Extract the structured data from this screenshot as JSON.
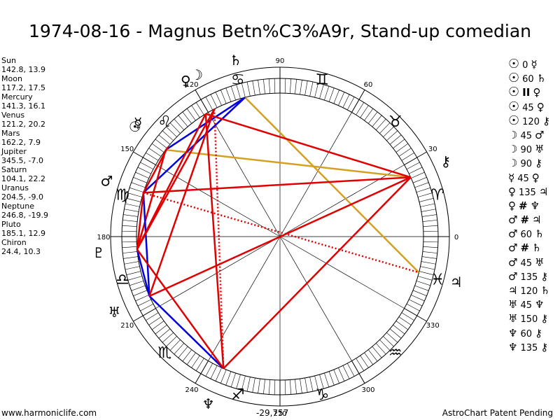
{
  "title": "1974-08-16 - Magnus Betn%C3%A9r, Stand-up comedian",
  "planets": [
    {
      "name": "Sun",
      "coords": "142.8, 13.9",
      "glyph": "☉",
      "lon": 142.8
    },
    {
      "name": "Moon",
      "coords": "117.2, 17.5",
      "glyph": "☽",
      "lon": 117.2
    },
    {
      "name": "Mercury",
      "coords": "141.3, 16.1",
      "glyph": "☿",
      "lon": 141.3
    },
    {
      "name": "Venus",
      "coords": "121.2, 20.2",
      "glyph": "♀",
      "lon": 121.2
    },
    {
      "name": "Mars",
      "coords": "162.2, 7.9",
      "glyph": "♂",
      "lon": 162.2
    },
    {
      "name": "Jupiter",
      "coords": "345.5, -7.0",
      "glyph": "♃",
      "lon": 345.5
    },
    {
      "name": "Saturn",
      "coords": "104.1, 22.2",
      "glyph": "♄",
      "lon": 104.1
    },
    {
      "name": "Uranus",
      "coords": "204.5, -9.0",
      "glyph": "♅",
      "lon": 204.5
    },
    {
      "name": "Neptune",
      "coords": "246.8, -19.9",
      "glyph": "♆",
      "lon": 246.8
    },
    {
      "name": "Pluto",
      "coords": "185.1, 12.9",
      "glyph": "♇",
      "lon": 185.1
    },
    {
      "name": "Chiron",
      "coords": "24.4, 10.3",
      "glyph": "⚷",
      "lon": 24.4
    }
  ],
  "aspects": [
    {
      "p1": "☉",
      "asp": "0",
      "p2": "☿"
    },
    {
      "p1": "☉",
      "asp": "60",
      "p2": "♄"
    },
    {
      "p1": "☉",
      "asp": "II",
      "p2": "♀"
    },
    {
      "p1": "☉",
      "asp": "45",
      "p2": "♀"
    },
    {
      "p1": "☉",
      "asp": "120",
      "p2": "⚷"
    },
    {
      "p1": "☽",
      "asp": "45",
      "p2": "♂"
    },
    {
      "p1": "☽",
      "asp": "90",
      "p2": "♅"
    },
    {
      "p1": "☽",
      "asp": "90",
      "p2": "⚷"
    },
    {
      "p1": "☿",
      "asp": "45",
      "p2": "♀"
    },
    {
      "p1": "♀",
      "asp": "135",
      "p2": "♃"
    },
    {
      "p1": "♀",
      "asp": "#",
      "p2": "♆"
    },
    {
      "p1": "♂",
      "asp": "#",
      "p2": "♃"
    },
    {
      "p1": "♂",
      "asp": "60",
      "p2": "♄"
    },
    {
      "p1": "♂",
      "asp": "#",
      "p2": "♄"
    },
    {
      "p1": "♂",
      "asp": "45",
      "p2": "♅"
    },
    {
      "p1": "♂",
      "asp": "135",
      "p2": "⚷"
    },
    {
      "p1": "♃",
      "asp": "120",
      "p2": "♄"
    },
    {
      "p1": "♅",
      "asp": "45",
      "p2": "♆"
    },
    {
      "p1": "♅",
      "asp": "150",
      "p2": "⚷"
    },
    {
      "p1": "♆",
      "asp": "60",
      "p2": "⚷"
    },
    {
      "p1": "♆",
      "asp": "135",
      "p2": "⚷"
    }
  ],
  "wheel": {
    "degree_labels": [
      "0",
      "30",
      "60",
      "90",
      "120",
      "150",
      "180",
      "210",
      "240",
      "270",
      "300",
      "330"
    ],
    "signs": [
      "♈",
      "♉",
      "♊",
      "♋",
      "♌",
      "♍",
      "♎",
      "♏",
      "♐",
      "♑",
      "♒",
      "♓"
    ],
    "colors": {
      "conjunction_hard": "#e00000",
      "soft": "#0000e0",
      "minor": "#d4a020",
      "ring": "#000000"
    },
    "aspect_lines": [
      {
        "a": 142.8,
        "b": 104.1,
        "color": "#0000e0",
        "style": "solid"
      },
      {
        "a": 142.8,
        "b": 24.4,
        "color": "#d4a020",
        "style": "solid"
      },
      {
        "a": 104.1,
        "b": 345.5,
        "color": "#d4a020",
        "style": "solid"
      },
      {
        "a": 162.2,
        "b": 104.1,
        "color": "#0000e0",
        "style": "solid"
      },
      {
        "a": 142.8,
        "b": 185.1,
        "color": "#e00000",
        "style": "solid"
      },
      {
        "a": 185.1,
        "b": 204.5,
        "color": "#0000e0",
        "style": "solid"
      },
      {
        "a": 204.5,
        "b": 246.8,
        "color": "#0000e0",
        "style": "solid"
      },
      {
        "a": 162.2,
        "b": 204.5,
        "color": "#0000e0",
        "style": "solid"
      },
      {
        "a": 121.2,
        "b": 24.4,
        "color": "#e00000",
        "style": "solid"
      },
      {
        "a": 121.2,
        "b": 185.1,
        "color": "#e00000",
        "style": "solid"
      },
      {
        "a": 121.2,
        "b": 246.8,
        "color": "#e00000",
        "style": "solid"
      },
      {
        "a": 117.2,
        "b": 204.5,
        "color": "#e00000",
        "style": "solid"
      },
      {
        "a": 117.2,
        "b": 185.1,
        "color": "#e00000",
        "style": "solid"
      },
      {
        "a": 162.2,
        "b": 24.4,
        "color": "#e00000",
        "style": "solid"
      },
      {
        "a": 162.2,
        "b": 185.1,
        "color": "#e00000",
        "style": "solid"
      },
      {
        "a": 162.2,
        "b": 141.3,
        "color": "#e00000",
        "style": "solid"
      },
      {
        "a": 204.5,
        "b": 24.4,
        "color": "#e00000",
        "style": "solid"
      },
      {
        "a": 246.8,
        "b": 24.4,
        "color": "#e00000",
        "style": "solid"
      },
      {
        "a": 246.8,
        "b": 185.1,
        "color": "#e00000",
        "style": "solid"
      },
      {
        "a": 162.2,
        "b": 345.5,
        "color": "#e00000",
        "style": "dotted"
      },
      {
        "a": 117.2,
        "b": 246.8,
        "color": "#e00000",
        "style": "dotted"
      }
    ]
  },
  "footer": {
    "left": "www.harmoniclife.com",
    "center": "-29,757",
    "right": "AstroChart Patent Pending"
  }
}
